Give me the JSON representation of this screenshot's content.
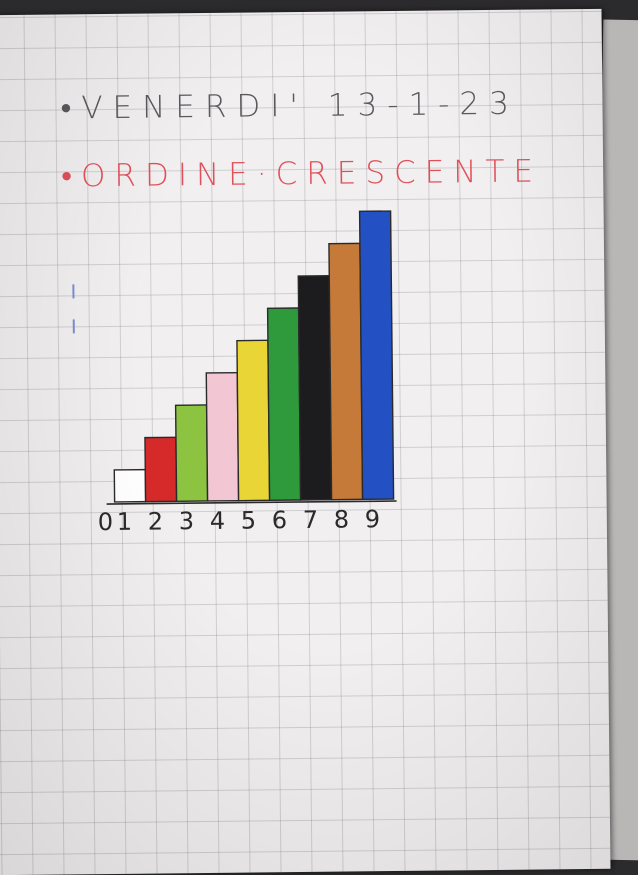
{
  "heading": {
    "date": "•VENERDI' 13-1-23",
    "title": "•ORDINE·CRESCENTE"
  },
  "chart_data": {
    "type": "bar",
    "categories": [
      "0",
      "1",
      "2",
      "3",
      "4",
      "5",
      "6",
      "7",
      "8",
      "9"
    ],
    "values": [
      0,
      1,
      2,
      3,
      4,
      5,
      6,
      7,
      8,
      9
    ],
    "colors": [
      "#ffffff",
      "#ffffff",
      "#d62a2a",
      "#8cc340",
      "#f2c6d2",
      "#ead536",
      "#2f9a3c",
      "#1c1c1e",
      "#c57a3a",
      "#2350c2"
    ],
    "title": "",
    "xlabel": "",
    "ylabel": "",
    "ylim": [
      0,
      9
    ]
  }
}
